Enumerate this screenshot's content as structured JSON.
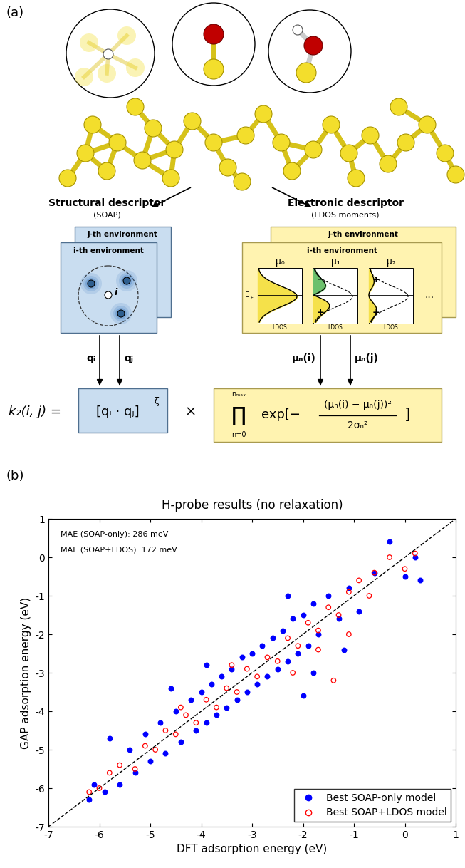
{
  "panel_a": {
    "label": "(a)",
    "structural": {
      "title": "Structural descriptor",
      "subtitle": "(SOAP)",
      "box_back": "j-th environment",
      "box_front": "i-th environment",
      "center_atom": "i",
      "arrows": [
        "qᵢ",
        "qⱼ"
      ]
    },
    "electronic": {
      "title": "Electronic descriptor",
      "subtitle": "(LDOS moments)",
      "box_back": "j-th environment",
      "box_front": "i-th environment",
      "fermi": "E",
      "fermi_sub": "F",
      "moments": [
        {
          "name": "μ₀",
          "signs": []
        },
        {
          "name": "μ₁",
          "signs": [
            "+",
            "−"
          ]
        },
        {
          "name": "μ₂",
          "signs": [
            "+",
            "+"
          ]
        }
      ],
      "axis_label": "LDOS",
      "ellipsis": "...",
      "arrows": [
        "μₙ(i)",
        "μₙ(j)"
      ]
    },
    "kernel": {
      "lhs": "k₂(i, j) =",
      "structural_term": "[qᵢ · qⱼ]",
      "exponent": "ζ",
      "times": "×",
      "product": "∏",
      "product_upper": "nₘₐₓ",
      "product_lower": "n=0",
      "exp_open": "exp[−",
      "numerator": "(μₙ(i) − μₙ(j))²",
      "denominator": "2σₙ²",
      "exp_close": "]"
    }
  },
  "chart_data": {
    "type": "scatter",
    "panel_label": "(b)",
    "title": "H-probe results (no relaxation)",
    "x_label": "DFT adsorption energy (eV)",
    "y_label": "GAP adsorption energy (eV)",
    "xlim": [
      -7,
      1
    ],
    "ylim": [
      -7,
      1
    ],
    "xticks": [
      -7,
      -6,
      -5,
      -4,
      -3,
      -2,
      -1,
      0,
      1
    ],
    "yticks": [
      -7,
      -6,
      -5,
      -4,
      -3,
      -2,
      -1,
      0,
      1
    ],
    "annotations": [
      "MAE (SOAP-only): 286 meV",
      "MAE (SOAP+LDOS): 172 meV"
    ],
    "legend": "lower right",
    "series": [
      {
        "name": "Best SOAP-only model",
        "color": "#0000ff",
        "marker": "filled",
        "x": [
          -6.2,
          -6.1,
          -5.9,
          -5.8,
          -5.6,
          -5.4,
          -5.3,
          -5.1,
          -5.0,
          -4.8,
          -4.7,
          -4.5,
          -4.4,
          -4.2,
          -4.1,
          -4.0,
          -3.9,
          -3.8,
          -3.7,
          -3.6,
          -3.5,
          -3.4,
          -3.3,
          -3.2,
          -3.1,
          -3.0,
          -2.9,
          -2.8,
          -2.7,
          -2.6,
          -2.5,
          -2.4,
          -2.3,
          -2.2,
          -2.1,
          -2.0,
          -1.9,
          -1.8,
          -1.7,
          -1.5,
          -1.3,
          -1.1,
          -0.9,
          -0.6,
          -0.3,
          0.0,
          0.2,
          0.3,
          -1.8,
          -2.3,
          -3.9,
          -4.6,
          -2.0,
          -1.2
        ],
        "values": [
          -6.3,
          -5.9,
          -6.1,
          -4.7,
          -5.9,
          -5.0,
          -5.6,
          -4.6,
          -5.3,
          -4.3,
          -5.1,
          -4.0,
          -4.8,
          -3.7,
          -4.5,
          -3.5,
          -4.3,
          -3.3,
          -4.1,
          -3.1,
          -3.9,
          -2.9,
          -3.7,
          -2.6,
          -3.5,
          -2.5,
          -3.3,
          -2.3,
          -3.1,
          -2.1,
          -2.9,
          -1.9,
          -2.7,
          -1.6,
          -2.5,
          -1.5,
          -2.3,
          -1.2,
          -2.0,
          -1.0,
          -1.6,
          -0.8,
          -1.4,
          -0.4,
          0.4,
          -0.5,
          0.0,
          -0.6,
          -3.0,
          -1.0,
          -2.8,
          -3.4,
          -3.6,
          -2.4
        ]
      },
      {
        "name": "Best SOAP+LDOS model",
        "color": "#ff0000",
        "marker": "open",
        "x": [
          -6.2,
          -6.0,
          -5.8,
          -5.6,
          -5.3,
          -5.1,
          -4.9,
          -4.7,
          -4.5,
          -4.3,
          -4.1,
          -3.9,
          -3.7,
          -3.5,
          -3.3,
          -3.1,
          -2.9,
          -2.7,
          -2.5,
          -2.3,
          -2.1,
          -1.9,
          -1.7,
          -1.5,
          -1.3,
          -1.1,
          -0.9,
          -0.6,
          -0.3,
          0.0,
          0.2,
          -1.7,
          -1.4,
          -2.2,
          -3.4,
          -4.4,
          -0.7,
          -1.1
        ],
        "values": [
          -6.1,
          -6.0,
          -5.6,
          -5.4,
          -5.5,
          -4.9,
          -5.0,
          -4.5,
          -4.6,
          -4.1,
          -4.3,
          -3.7,
          -3.9,
          -3.4,
          -3.5,
          -2.9,
          -3.1,
          -2.6,
          -2.7,
          -2.1,
          -2.3,
          -1.7,
          -1.9,
          -1.3,
          -1.5,
          -0.9,
          -0.6,
          -0.4,
          0.0,
          -0.3,
          0.1,
          -2.4,
          -3.2,
          -3.0,
          -2.8,
          -3.9,
          -1.0,
          -2.0
        ]
      }
    ]
  }
}
